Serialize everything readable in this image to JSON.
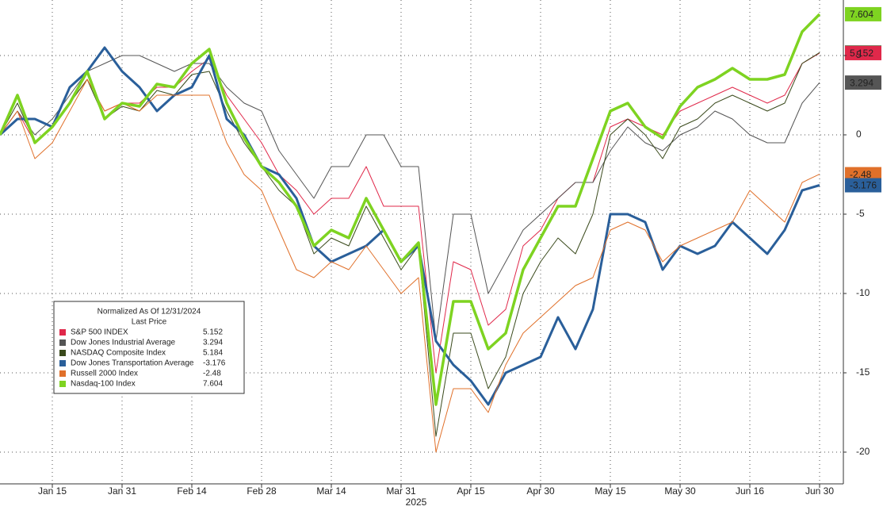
{
  "chart_data": {
    "type": "line",
    "legend_title": "Normalized As Of 12/31/2024",
    "legend_subtitle": "Last Price",
    "x_label": "2025",
    "categories": [
      null,
      null,
      null,
      "Jan 15",
      null,
      null,
      null,
      "Jan 31",
      null,
      null,
      null,
      "Feb 14",
      null,
      null,
      null,
      "Feb 28",
      null,
      null,
      null,
      "Mar 14",
      null,
      null,
      null,
      "Mar 31",
      null,
      null,
      null,
      "Apr 15",
      null,
      null,
      null,
      "Apr 30",
      null,
      null,
      null,
      "May 15",
      null,
      null,
      null,
      "May 30",
      null,
      null,
      null,
      "Jun 16",
      null,
      null,
      null,
      "Jun 30"
    ],
    "ylim": [
      -22,
      8.5
    ],
    "yticks": [
      -20,
      -15,
      -10,
      -5,
      0,
      5
    ],
    "grid": true,
    "series": [
      {
        "name": "S&P 500 INDEX",
        "color": "#e0284a",
        "width": 1,
        "values": [
          0,
          1.5,
          -0.5,
          0.5,
          2,
          3.5,
          1.5,
          2,
          2,
          3,
          3,
          4,
          4.8,
          2.5,
          1,
          -0.5,
          -2.5,
          -3.5,
          -5,
          -4,
          -4,
          -2,
          -4.5,
          -4.5,
          -4.5,
          -15,
          -8,
          -8.5,
          -12,
          -11,
          -7,
          -6,
          -4,
          -3,
          -3,
          0.5,
          1,
          0.5,
          0,
          1.5,
          2,
          2.5,
          3,
          2.5,
          2,
          2.5,
          4.5,
          5.152
        ]
      },
      {
        "name": "Dow Jones Industrial Average",
        "color": "#555555",
        "width": 1,
        "values": [
          0,
          1.5,
          0,
          1,
          2.5,
          4,
          4.5,
          5,
          5,
          4.5,
          4,
          4.5,
          4.5,
          3,
          2,
          1.5,
          -1,
          -2.5,
          -4,
          -2,
          -2,
          0,
          0,
          -2,
          -2,
          -13,
          -5,
          -5,
          -10,
          -8,
          -6,
          -5,
          -4,
          -3,
          -3,
          -1,
          0.5,
          -0.5,
          -1,
          0,
          0.5,
          1.5,
          1,
          0,
          -0.5,
          -0.5,
          2,
          3.294
        ]
      },
      {
        "name": "NASDAQ Composite Index",
        "color": "#3a4a1c",
        "width": 1,
        "values": [
          0,
          2,
          -0.5,
          0.5,
          2,
          3.5,
          1,
          1.8,
          1.5,
          2.8,
          2.5,
          3.8,
          4,
          1.5,
          -0.5,
          -2,
          -3.5,
          -4.5,
          -7.5,
          -6.5,
          -7,
          -4.5,
          -6.5,
          -8.5,
          -7,
          -19,
          -12.5,
          -12.5,
          -16,
          -14,
          -10,
          -8,
          -6.5,
          -7.5,
          -5,
          0,
          1,
          0,
          -1.5,
          0.5,
          1,
          2,
          2.5,
          2,
          1.5,
          2,
          4.5,
          5.184
        ]
      },
      {
        "name": "Dow Jones Transportation Average",
        "color": "#2a5f9a",
        "width": 3,
        "values": [
          0,
          1,
          1,
          0.5,
          3,
          4,
          5.5,
          4,
          3,
          1.5,
          2.5,
          3,
          5,
          1,
          0,
          -2,
          -2.5,
          -4,
          -7,
          -8,
          -7.5,
          -7,
          -6,
          -8,
          -7,
          -13,
          -14.5,
          -15.5,
          -17,
          -15,
          -14.5,
          -14,
          -11.5,
          -13.5,
          -11,
          -5,
          -5,
          -5.5,
          -8.5,
          -7,
          -7.5,
          -7,
          -5.5,
          -6.5,
          -7.5,
          -6,
          -3.5,
          -3.176
        ]
      },
      {
        "name": "Russell 2000 Index",
        "color": "#e0702a",
        "width": 1,
        "values": [
          0,
          1.5,
          -1.5,
          -0.5,
          1.5,
          3.5,
          1.5,
          2,
          1.5,
          2.5,
          2.5,
          2.5,
          2.5,
          -0.5,
          -2.5,
          -3.5,
          -6,
          -8.5,
          -9,
          -8,
          -8.5,
          -7,
          -8.5,
          -10,
          -9,
          -20,
          -16,
          -16,
          -17.5,
          -14.5,
          -12.5,
          -11.5,
          -10.5,
          -9.5,
          -9,
          -6,
          -5.5,
          -6,
          -8,
          -7,
          -6.5,
          -6,
          -5.5,
          -3.5,
          -4.5,
          -5.5,
          -3,
          -2.48
        ]
      },
      {
        "name": "Nasdaq-100 Index",
        "color": "#7ed321",
        "width": 3.5,
        "values": [
          0,
          2.5,
          -0.5,
          0.5,
          2,
          4,
          1,
          2,
          1.8,
          3.2,
          3,
          4.5,
          5.4,
          2,
          -0.2,
          -2,
          -3,
          -4.5,
          -7,
          -6,
          -6.5,
          -4,
          -6,
          -8,
          -6.8,
          -17,
          -10.5,
          -10.5,
          -13.5,
          -12.5,
          -8.5,
          -6.5,
          -4.5,
          -4.5,
          -1.5,
          1.5,
          2,
          0.5,
          -0.2,
          1.8,
          3,
          3.5,
          4.2,
          3.5,
          3.5,
          3.8,
          6.5,
          7.604
        ]
      }
    ]
  }
}
